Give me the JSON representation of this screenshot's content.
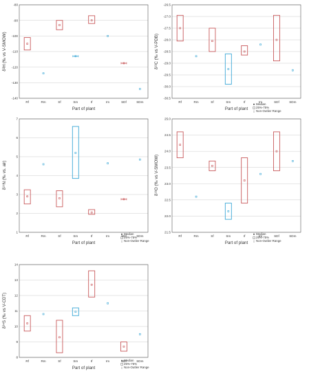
{
  "chart_data": [
    {
      "type": "box",
      "xlabel": "Part of plant",
      "ylabel": "δ²H (‰ vs V-SMOW)",
      "categories": [
        "Rf",
        "Rm",
        "Sf",
        "Sm",
        "If",
        "Im",
        "SDf",
        "SDm"
      ],
      "ylim": [
        -140,
        -80
      ],
      "yticks": [
        "-80",
        "-90",
        "-100",
        "-110",
        "-120",
        "-130",
        "-140"
      ],
      "series": [
        {
          "median": -105,
          "q1": -109,
          "q3": -101,
          "color": "#c8585a"
        },
        {
          "median": -124,
          "color": "#3aa7d6"
        },
        {
          "median": -93,
          "q1": -96,
          "q3": -90,
          "color": "#c8585a"
        },
        {
          "median": -113,
          "whisker": true,
          "color": "#3aa7d6"
        },
        {
          "median": -90,
          "q1": -92,
          "q3": -87,
          "color": "#c8585a"
        },
        {
          "median": -100,
          "color": "#3aa7d6"
        },
        {
          "median": -117.5,
          "whisker": true,
          "color": "#c8585a"
        },
        {
          "median": -134,
          "color": "#3aa7d6"
        }
      ]
    },
    {
      "type": "box",
      "xlabel": "Part of plant",
      "ylabel": "δ¹³C (‰ vs V-PDB)",
      "categories": [
        "Rf",
        "Rm",
        "Sf",
        "Sm",
        "If",
        "Im",
        "SDf",
        "SDm"
      ],
      "ylim": [
        -30.5,
        -26.5
      ],
      "yticks": [
        "-26.5",
        "-27.0",
        "-27.5",
        "-28.0",
        "-28.5",
        "-29.0",
        "-29.5",
        "-30.0",
        "-30.5"
      ],
      "series": [
        {
          "median": -27.5,
          "q1": -28.05,
          "q3": -26.95,
          "color": "#c8585a"
        },
        {
          "median": -28.7,
          "color": "#3aa7d6"
        },
        {
          "median": -28.05,
          "q1": -28.5,
          "q3": -27.5,
          "color": "#c8585a"
        },
        {
          "median": -29.25,
          "q1": -29.9,
          "q3": -28.6,
          "color": "#3aa7d6"
        },
        {
          "median": -28.5,
          "q1": -28.65,
          "q3": -28.25,
          "color": "#c8585a"
        },
        {
          "median": -28.2,
          "color": "#3aa7d6"
        },
        {
          "median": -28.0,
          "q1": -28.9,
          "q3": -26.95,
          "color": "#c8585a"
        },
        {
          "median": -29.3,
          "color": "#3aa7d6"
        }
      ],
      "legend": [
        "Median",
        "25%-75%",
        "Non-Outlier Range"
      ]
    },
    {
      "type": "box",
      "xlabel": "Part of plant",
      "ylabel": "δ¹⁵N (‰ vs. air)",
      "categories": [
        "Rf",
        "Rm",
        "Sf",
        "Sm",
        "If",
        "Im",
        "SDf",
        "SDm"
      ],
      "ylim": [
        1,
        7
      ],
      "yticks": [
        "7",
        "6",
        "5",
        "4",
        "3",
        "2",
        "1"
      ],
      "series": [
        {
          "median": 2.9,
          "q1": 2.5,
          "q3": 3.25,
          "color": "#c8585a"
        },
        {
          "median": 4.6,
          "color": "#3aa7d6"
        },
        {
          "median": 2.8,
          "q1": 2.35,
          "q3": 3.2,
          "color": "#c8585a"
        },
        {
          "median": 5.2,
          "q1": 3.85,
          "q3": 6.6,
          "color": "#3aa7d6"
        },
        {
          "median": 2.05,
          "q1": 1.95,
          "q3": 2.2,
          "color": "#c8585a"
        },
        {
          "median": 4.65,
          "color": "#3aa7d6"
        },
        {
          "median": 2.75,
          "whisker": true,
          "color": "#c8585a"
        },
        {
          "median": 4.85,
          "color": "#3aa7d6"
        }
      ],
      "legend": [
        "Median",
        "25%-75%",
        "Non-Outlier Range"
      ]
    },
    {
      "type": "box",
      "xlabel": "Part of plant",
      "ylabel": "δ¹⁸O (‰ vs V-SMOW)",
      "categories": [
        "Rf",
        "Rm",
        "Sf",
        "Sm",
        "If",
        "Im",
        "SDf",
        "SDm"
      ],
      "ylim": [
        21.5,
        25.0
      ],
      "yticks": [
        "25.0",
        "24.5",
        "24.0",
        "23.5",
        "23.0",
        "22.5",
        "22.0",
        "21.5"
      ],
      "series": [
        {
          "median": 24.2,
          "q1": 23.8,
          "q3": 24.6,
          "color": "#c8585a"
        },
        {
          "median": 22.6,
          "color": "#3aa7d6"
        },
        {
          "median": 23.55,
          "q1": 23.4,
          "q3": 23.7,
          "color": "#c8585a"
        },
        {
          "median": 22.15,
          "q1": 21.9,
          "q3": 22.4,
          "color": "#3aa7d6"
        },
        {
          "median": 23.1,
          "q1": 22.4,
          "q3": 23.8,
          "color": "#c8585a"
        },
        {
          "median": 23.3,
          "color": "#3aa7d6"
        },
        {
          "median": 24.0,
          "q1": 23.4,
          "q3": 24.6,
          "color": "#c8585a"
        },
        {
          "median": 23.7,
          "color": "#3aa7d6"
        }
      ],
      "legend": [
        "Median",
        "25%-75%",
        "Non-Outlier Range"
      ]
    },
    {
      "type": "box",
      "xlabel": "Part of plant",
      "ylabel": "δ³⁴S (‰ vs V-CDT)",
      "categories": [
        "Rf",
        "Rm",
        "Sf",
        "Sm",
        "If",
        "Im",
        "SDf",
        "SDm"
      ],
      "ylim": [
        8,
        14
      ],
      "yticks": [
        "14",
        "13",
        "12",
        "11",
        "10",
        "9",
        "8"
      ],
      "series": [
        {
          "median": 10.2,
          "q1": 9.7,
          "q3": 10.7,
          "color": "#c8585a"
        },
        {
          "median": 10.8,
          "color": "#3aa7d6"
        },
        {
          "median": 9.3,
          "q1": 8.3,
          "q3": 10.4,
          "color": "#c8585a"
        },
        {
          "median": 10.95,
          "q1": 10.7,
          "q3": 11.2,
          "color": "#3aa7d6"
        },
        {
          "median": 12.7,
          "q1": 11.9,
          "q3": 13.6,
          "color": "#c8585a"
        },
        {
          "median": 11.5,
          "color": "#3aa7d6"
        },
        {
          "median": 8.7,
          "q1": 8.4,
          "q3": 9.0,
          "color": "#c8585a"
        },
        {
          "median": 9.5,
          "color": "#3aa7d6"
        }
      ],
      "legend": [
        "Median",
        "25%-75%",
        "Non-Outlier Range"
      ]
    }
  ]
}
